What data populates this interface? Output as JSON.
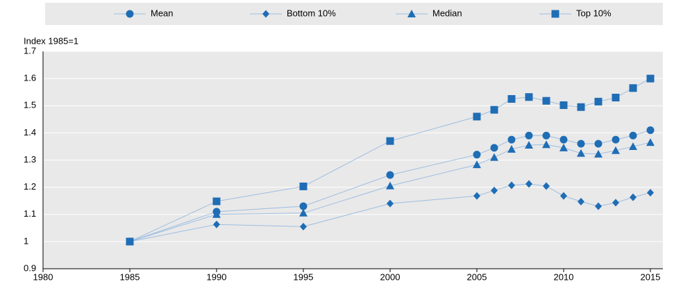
{
  "chart_data": {
    "type": "line",
    "y_label": "Index 1985=1",
    "x": [
      1985,
      1990,
      1995,
      2000,
      2005,
      2006,
      2007,
      2008,
      2009,
      2010,
      2011,
      2012,
      2013,
      2014,
      2015
    ],
    "series": [
      {
        "name": "Mean",
        "marker": "circle",
        "color": "#1f6db5",
        "values": [
          1,
          1.11,
          1.13,
          1.245,
          1.32,
          1.345,
          1.375,
          1.39,
          1.39,
          1.375,
          1.36,
          1.36,
          1.375,
          1.39,
          1.41
        ]
      },
      {
        "name": "Bottom 10%",
        "marker": "diamond",
        "color": "#1f6db5",
        "values": [
          1,
          1.063,
          1.055,
          1.14,
          1.168,
          1.188,
          1.207,
          1.212,
          1.204,
          1.168,
          1.147,
          1.13,
          1.143,
          1.163,
          1.18
        ]
      },
      {
        "name": "Median",
        "marker": "triangle",
        "color": "#1f6db5",
        "values": [
          1,
          1.1,
          1.105,
          1.205,
          1.283,
          1.31,
          1.34,
          1.355,
          1.357,
          1.345,
          1.325,
          1.322,
          1.335,
          1.35,
          1.365
        ]
      },
      {
        "name": "Top 10%",
        "marker": "square",
        "color": "#1f6db5",
        "values": [
          1,
          1.148,
          1.203,
          1.37,
          1.46,
          1.485,
          1.525,
          1.532,
          1.518,
          1.502,
          1.495,
          1.515,
          1.53,
          1.565,
          1.6
        ]
      }
    ],
    "line_color": "#9dbde0",
    "xlim": [
      1980,
      2016
    ],
    "xticks": [
      1980,
      1985,
      1990,
      1995,
      2000,
      2005,
      2010,
      2015
    ],
    "ylim": [
      0.9,
      1.7
    ],
    "yticks": [
      0.9,
      1,
      1.1,
      1.2,
      1.3,
      1.4,
      1.5,
      1.6,
      1.7
    ],
    "grid": true,
    "legend": "top"
  }
}
